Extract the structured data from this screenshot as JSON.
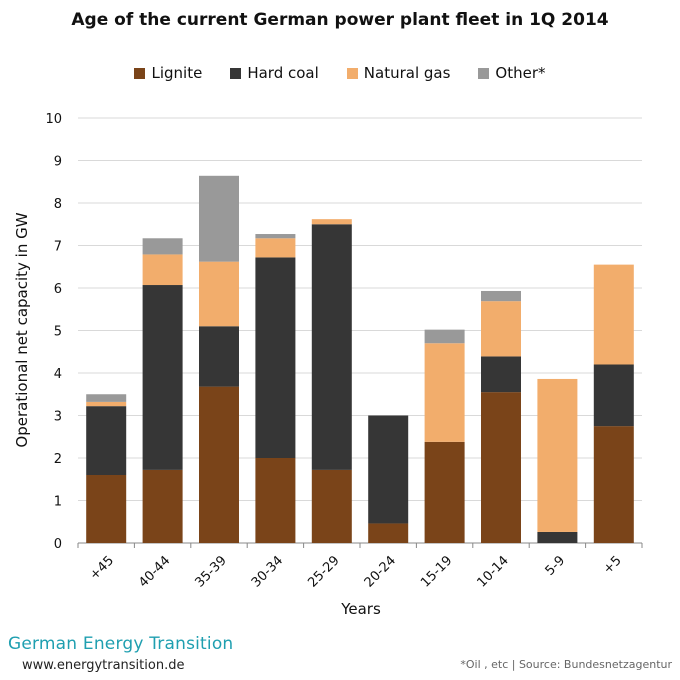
{
  "chart_data": {
    "type": "bar",
    "stacked": true,
    "title": "Age of the current German power plant fleet in 1Q 2014",
    "xlabel": "Years",
    "ylabel": "Operational net capacity in GW",
    "ylim": [
      0,
      10
    ],
    "yticks": [
      "0",
      "1",
      "2",
      "3",
      "4",
      "5",
      "6",
      "7",
      "8",
      "9",
      "10"
    ],
    "grid": true,
    "legend_position": "top",
    "categories": [
      "+45",
      "40-44",
      "35-39",
      "30-34",
      "25-29",
      "20-24",
      "15-19",
      "10-14",
      "5-9",
      "+5"
    ],
    "series": [
      {
        "name": "Lignite",
        "color": "#7a4419",
        "values": [
          1.6,
          1.72,
          3.68,
          2.0,
          1.72,
          0.46,
          2.38,
          3.55,
          0.0,
          2.75
        ]
      },
      {
        "name": "Hard coal",
        "color": "#363636",
        "values": [
          1.62,
          4.35,
          1.42,
          4.72,
          5.78,
          2.54,
          0.0,
          0.84,
          0.26,
          1.45
        ]
      },
      {
        "name": "Natural gas",
        "color": "#f2ad6c",
        "values": [
          0.1,
          0.72,
          1.52,
          0.45,
          0.12,
          0.0,
          2.32,
          1.3,
          3.6,
          2.35
        ]
      },
      {
        "name": "Other*",
        "color": "#999999",
        "values": [
          0.18,
          0.38,
          2.02,
          0.1,
          0.0,
          0.0,
          0.32,
          0.24,
          0.0,
          0.0
        ]
      }
    ]
  },
  "footer": {
    "brand": "German Energy Transition",
    "url": "www.energytransition.de",
    "source": "*Oil , etc | Source:  Bundesnetzagentur"
  }
}
